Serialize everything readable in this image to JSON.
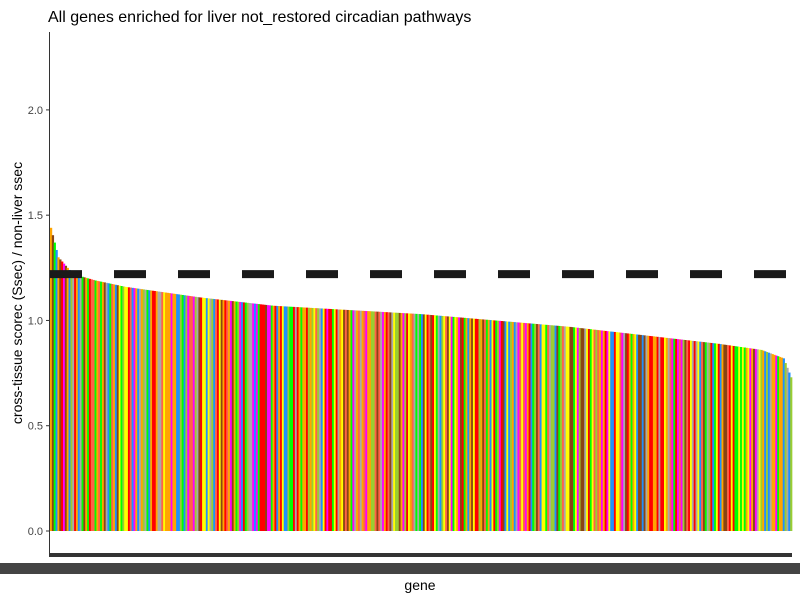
{
  "chart_data": {
    "type": "bar",
    "title": "All genes enriched for liver not_restored circadian pathways",
    "xlabel": "gene",
    "ylabel": "cross-tissue scorec (Ssec) / non-liver ssec",
    "ylim": [
      0,
      2.37
    ],
    "yticks": [
      0.0,
      0.5,
      1.0,
      1.5,
      2.0
    ],
    "ytick_labels": [
      "0.0",
      "0.5",
      "1.0",
      "1.5",
      "2.0"
    ],
    "bar_count": 400,
    "sorted": "descending",
    "value_profile": [
      [
        0.0,
        1.44
      ],
      [
        0.01,
        1.3
      ],
      [
        0.03,
        1.22
      ],
      [
        0.06,
        1.19
      ],
      [
        0.1,
        1.16
      ],
      [
        0.2,
        1.11
      ],
      [
        0.3,
        1.07
      ],
      [
        0.4,
        1.05
      ],
      [
        0.5,
        1.03
      ],
      [
        0.6,
        1.0
      ],
      [
        0.7,
        0.97
      ],
      [
        0.8,
        0.93
      ],
      [
        0.9,
        0.89
      ],
      [
        0.96,
        0.86
      ],
      [
        0.99,
        0.82
      ],
      [
        1.0,
        0.73
      ]
    ],
    "bar_colors": [
      "#ff0000",
      "#00ff00",
      "#1e90ff",
      "#ffff00",
      "#ffa500",
      "#8b4513",
      "#a9a9a9",
      "#9acd32",
      "#ff00ff",
      "#ff6347"
    ],
    "reference_line": {
      "y": 1.22,
      "style": "dashed",
      "color": "#1a1a1a"
    },
    "grid": false,
    "legend": "none"
  }
}
